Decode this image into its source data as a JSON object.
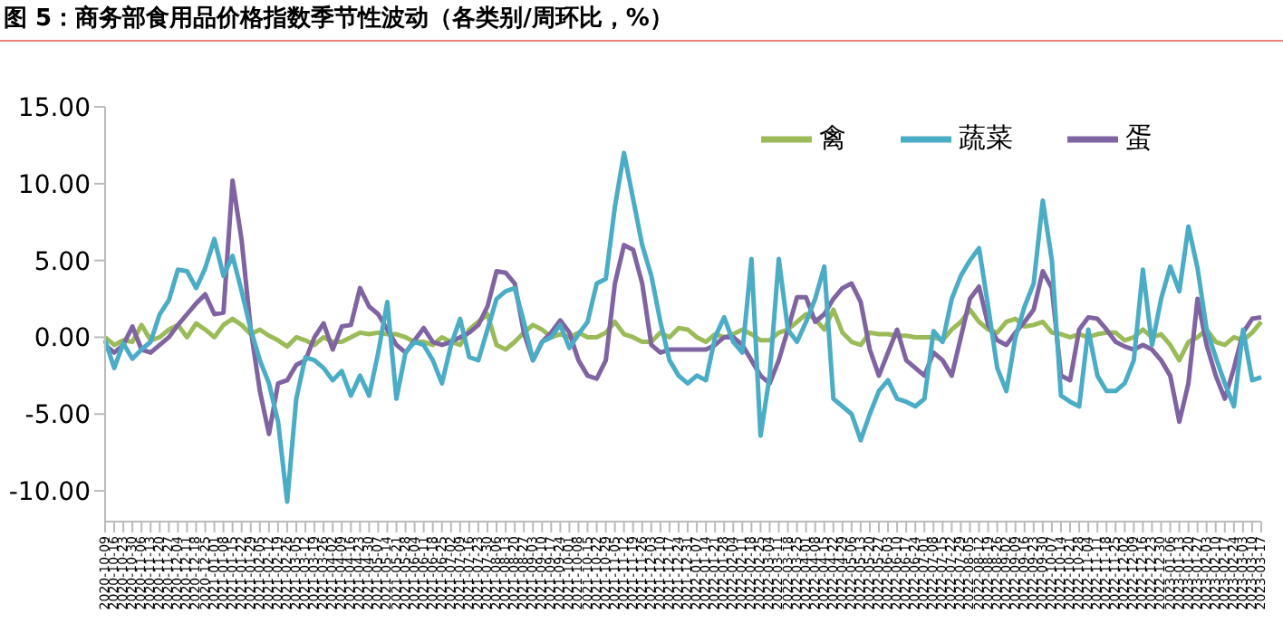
{
  "chart_data": {
    "type": "line",
    "title": "图 5：商务部食用品价格指数季节性波动（各类别/周环比，%）",
    "categories": [
      "2020-10-09",
      "2020-10-16",
      "2020-10-23",
      "2020-10-30",
      "2020-11-06",
      "2020-11-13",
      "2020-11-20",
      "2020-11-27",
      "2020-12-04",
      "2020-12-11",
      "2020-12-18",
      "2020-12-25",
      "2021-01-01",
      "2021-01-08",
      "2021-01-15",
      "2021-01-22",
      "2021-01-29",
      "2021-02-05",
      "2021-02-12",
      "2021-02-19",
      "2021-02-26",
      "2021-03-05",
      "2021-03-12",
      "2021-03-19",
      "2021-03-26",
      "2021-04-02",
      "2021-04-09",
      "2021-04-16",
      "2021-04-23",
      "2021-04-30",
      "2021-05-07",
      "2021-05-14",
      "2021-05-21",
      "2021-05-28",
      "2021-06-04",
      "2021-06-11",
      "2021-06-18",
      "2021-06-25",
      "2021-07-02",
      "2021-07-09",
      "2021-07-16",
      "2021-07-23",
      "2021-07-30",
      "2021-08-06",
      "2021-08-13",
      "2021-08-20",
      "2021-08-27",
      "2021-09-03",
      "2021-09-10",
      "2021-09-17",
      "2021-09-24",
      "2021-10-01",
      "2021-10-08",
      "2021-10-15",
      "2021-10-22",
      "2021-10-29",
      "2021-11-05",
      "2021-11-12",
      "2021-11-19",
      "2021-11-26",
      "2021-12-03",
      "2021-12-10",
      "2021-12-17",
      "2021-12-24",
      "2021-12-31",
      "2022-01-07",
      "2022-01-14",
      "2022-01-21",
      "2022-01-28",
      "2022-02-04",
      "2022-02-11",
      "2022-02-18",
      "2022-02-25",
      "2022-03-04",
      "2022-03-11",
      "2022-03-18",
      "2022-03-25",
      "2022-04-01",
      "2022-04-08",
      "2022-04-15",
      "2022-04-22",
      "2022-04-29",
      "2022-05-06",
      "2022-05-13",
      "2022-05-20",
      "2022-05-27",
      "2022-06-03",
      "2022-06-10",
      "2022-06-17",
      "2022-06-24",
      "2022-07-01",
      "2022-07-08",
      "2022-07-15",
      "2022-07-22",
      "2022-07-29",
      "2022-08-05",
      "2022-08-12",
      "2022-08-19",
      "2022-08-26",
      "2022-09-02",
      "2022-09-09",
      "2022-09-16",
      "2022-09-23",
      "2022-09-30",
      "2022-10-07",
      "2022-10-14",
      "2022-10-21",
      "2022-10-28",
      "2022-11-04",
      "2022-11-11",
      "2022-11-18",
      "2022-11-25",
      "2022-12-02",
      "2022-12-09",
      "2022-12-16",
      "2022-12-23",
      "2022-12-30",
      "2023-01-06",
      "2023-01-13",
      "2023-01-20",
      "2023-01-27",
      "2023-02-03",
      "2023-02-10",
      "2023-02-17",
      "2023-02-24",
      "2023-03-03",
      "2023-03-10",
      "2023-03-17"
    ],
    "series": [
      {
        "name": "禽",
        "color": "#9bbb59",
        "values": [
          0.0,
          -0.5,
          -0.2,
          -0.3,
          0.8,
          -0.2,
          0.0,
          0.5,
          0.8,
          0.0,
          0.9,
          0.5,
          0.0,
          0.8,
          1.2,
          0.8,
          0.2,
          0.5,
          0.1,
          -0.2,
          -0.6,
          0.0,
          -0.2,
          -0.5,
          0.0,
          -0.3,
          -0.3,
          0.0,
          0.3,
          0.2,
          0.3,
          0.2,
          0.2,
          0.0,
          -0.3,
          -0.3,
          -0.5,
          0.0,
          -0.3,
          -0.5,
          0.5,
          1.0,
          1.5,
          -0.5,
          -0.8,
          -0.3,
          0.3,
          0.8,
          0.5,
          0.0,
          0.2,
          0.0,
          0.3,
          0.0,
          0.0,
          0.3,
          1.0,
          0.2,
          0.0,
          -0.3,
          -0.3,
          0.3,
          0.0,
          0.6,
          0.5,
          0.0,
          -0.3,
          0.2,
          0.0,
          0.2,
          0.5,
          0.2,
          -0.2,
          -0.2,
          0.3,
          0.5,
          1.0,
          1.5,
          1.2,
          0.5,
          1.8,
          0.3,
          -0.3,
          -0.5,
          0.3,
          0.2,
          0.2,
          0.1,
          0.1,
          0.0,
          0.0,
          0.0,
          -0.2,
          0.5,
          1.0,
          1.8,
          1.0,
          0.5,
          0.3,
          1.0,
          1.2,
          0.7,
          0.8,
          1.0,
          0.3,
          0.2,
          0.0,
          0.2,
          0.0,
          0.2,
          0.3,
          0.3,
          -0.2,
          0.0,
          0.5,
          0.0,
          0.2,
          -0.5,
          -1.5,
          -0.3,
          0.0,
          0.5,
          -0.3,
          -0.5,
          0.0,
          -0.2,
          0.3,
          1.0
        ]
      },
      {
        "name": "蛋",
        "color": "#8064a2",
        "values": [
          -0.5,
          -1.0,
          -0.5,
          0.7,
          -0.8,
          -1.0,
          -0.5,
          0.0,
          0.8,
          1.5,
          2.2,
          2.8,
          1.5,
          1.6,
          10.2,
          6.3,
          0.5,
          -3.5,
          -6.3,
          -3.0,
          -2.8,
          -1.8,
          -1.5,
          0.0,
          0.9,
          -0.8,
          0.7,
          0.8,
          3.2,
          2.0,
          1.5,
          0.5,
          -0.5,
          -1.0,
          -0.2,
          0.6,
          -0.3,
          -0.5,
          -0.3,
          0.0,
          0.3,
          0.8,
          2.0,
          4.3,
          4.2,
          3.5,
          0.3,
          -1.5,
          -0.3,
          0.3,
          1.1,
          0.3,
          -1.5,
          -2.5,
          -2.7,
          -1.5,
          3.5,
          6.0,
          5.7,
          3.5,
          -0.5,
          -1.0,
          -0.8,
          -0.8,
          -0.8,
          -0.8,
          -0.8,
          -0.5,
          0.0,
          0.0,
          -0.5,
          -1.5,
          -2.5,
          -3.0,
          -1.5,
          0.5,
          2.6,
          2.6,
          1.0,
          1.5,
          2.5,
          3.2,
          3.5,
          2.3,
          -0.8,
          -2.5,
          -1.0,
          0.5,
          -1.5,
          -2.0,
          -2.5,
          -1.0,
          -1.5,
          -2.5,
          0.0,
          2.5,
          3.3,
          0.8,
          -0.2,
          -0.5,
          0.3,
          1.0,
          1.8,
          4.3,
          3.2,
          -2.5,
          -2.8,
          0.5,
          1.3,
          1.2,
          0.5,
          -0.3,
          -0.6,
          -0.8,
          -0.5,
          -0.8,
          -1.5,
          -2.5,
          -5.5,
          -3.0,
          2.5,
          -0.5,
          -2.5,
          -4.0,
          -2.0,
          0.3,
          1.2,
          1.3
        ]
      },
      {
        "name": "蔬菜",
        "color": "#4bacc6",
        "values": [
          -0.2,
          -2.0,
          -0.4,
          -1.4,
          -0.8,
          -0.3,
          1.5,
          2.4,
          4.4,
          4.3,
          3.2,
          4.5,
          6.4,
          4.0,
          5.3,
          3.0,
          0.5,
          -1.5,
          -3.0,
          -5.5,
          -10.7,
          -4.0,
          -1.3,
          -1.5,
          -2.0,
          -2.8,
          -2.2,
          -3.8,
          -2.5,
          -3.8,
          -1.0,
          2.3,
          -4.0,
          -1.0,
          -0.3,
          -0.5,
          -1.5,
          -3.0,
          -0.5,
          1.2,
          -1.3,
          -1.5,
          0.5,
          2.5,
          3.0,
          3.2,
          1.0,
          -1.5,
          -0.3,
          0.0,
          0.8,
          -0.7,
          0.2,
          1.0,
          3.5,
          3.8,
          8.5,
          12.0,
          9.0,
          6.0,
          4.0,
          1.0,
          -1.5,
          -2.5,
          -3.0,
          -2.5,
          -2.8,
          0.0,
          1.3,
          -0.3,
          -1.0,
          5.1,
          -6.4,
          -2.5,
          5.1,
          0.5,
          -0.3,
          1.0,
          2.5,
          4.6,
          -4.0,
          -4.5,
          -5.0,
          -6.7,
          -5.0,
          -3.5,
          -2.8,
          -4.0,
          -4.2,
          -4.5,
          -4.0,
          0.4,
          -0.3,
          2.5,
          4.0,
          5.0,
          5.8,
          2.0,
          -2.0,
          -3.5,
          0.0,
          2.0,
          3.5,
          8.9,
          5.0,
          -3.8,
          -4.2,
          -4.5,
          0.5,
          -2.5,
          -3.5,
          -3.5,
          -3.0,
          -1.5,
          4.4,
          -0.5,
          2.5,
          4.6,
          3.0,
          7.2,
          4.5,
          0.5,
          -1.3,
          -3.0,
          -4.5,
          0.5,
          -2.8,
          -2.6
        ]
      }
    ],
    "ylim": [
      -12,
      15
    ],
    "yticks": [
      {
        "value": -10,
        "label": "-10.00"
      },
      {
        "value": -5,
        "label": "-5.00"
      },
      {
        "value": 0,
        "label": "0.00"
      },
      {
        "value": 5,
        "label": "5.00"
      },
      {
        "value": 10,
        "label": "10.00"
      },
      {
        "value": 15,
        "label": "15.00"
      }
    ],
    "grid": false,
    "legend": "top right",
    "marker": "none",
    "line_style": "solid"
  }
}
